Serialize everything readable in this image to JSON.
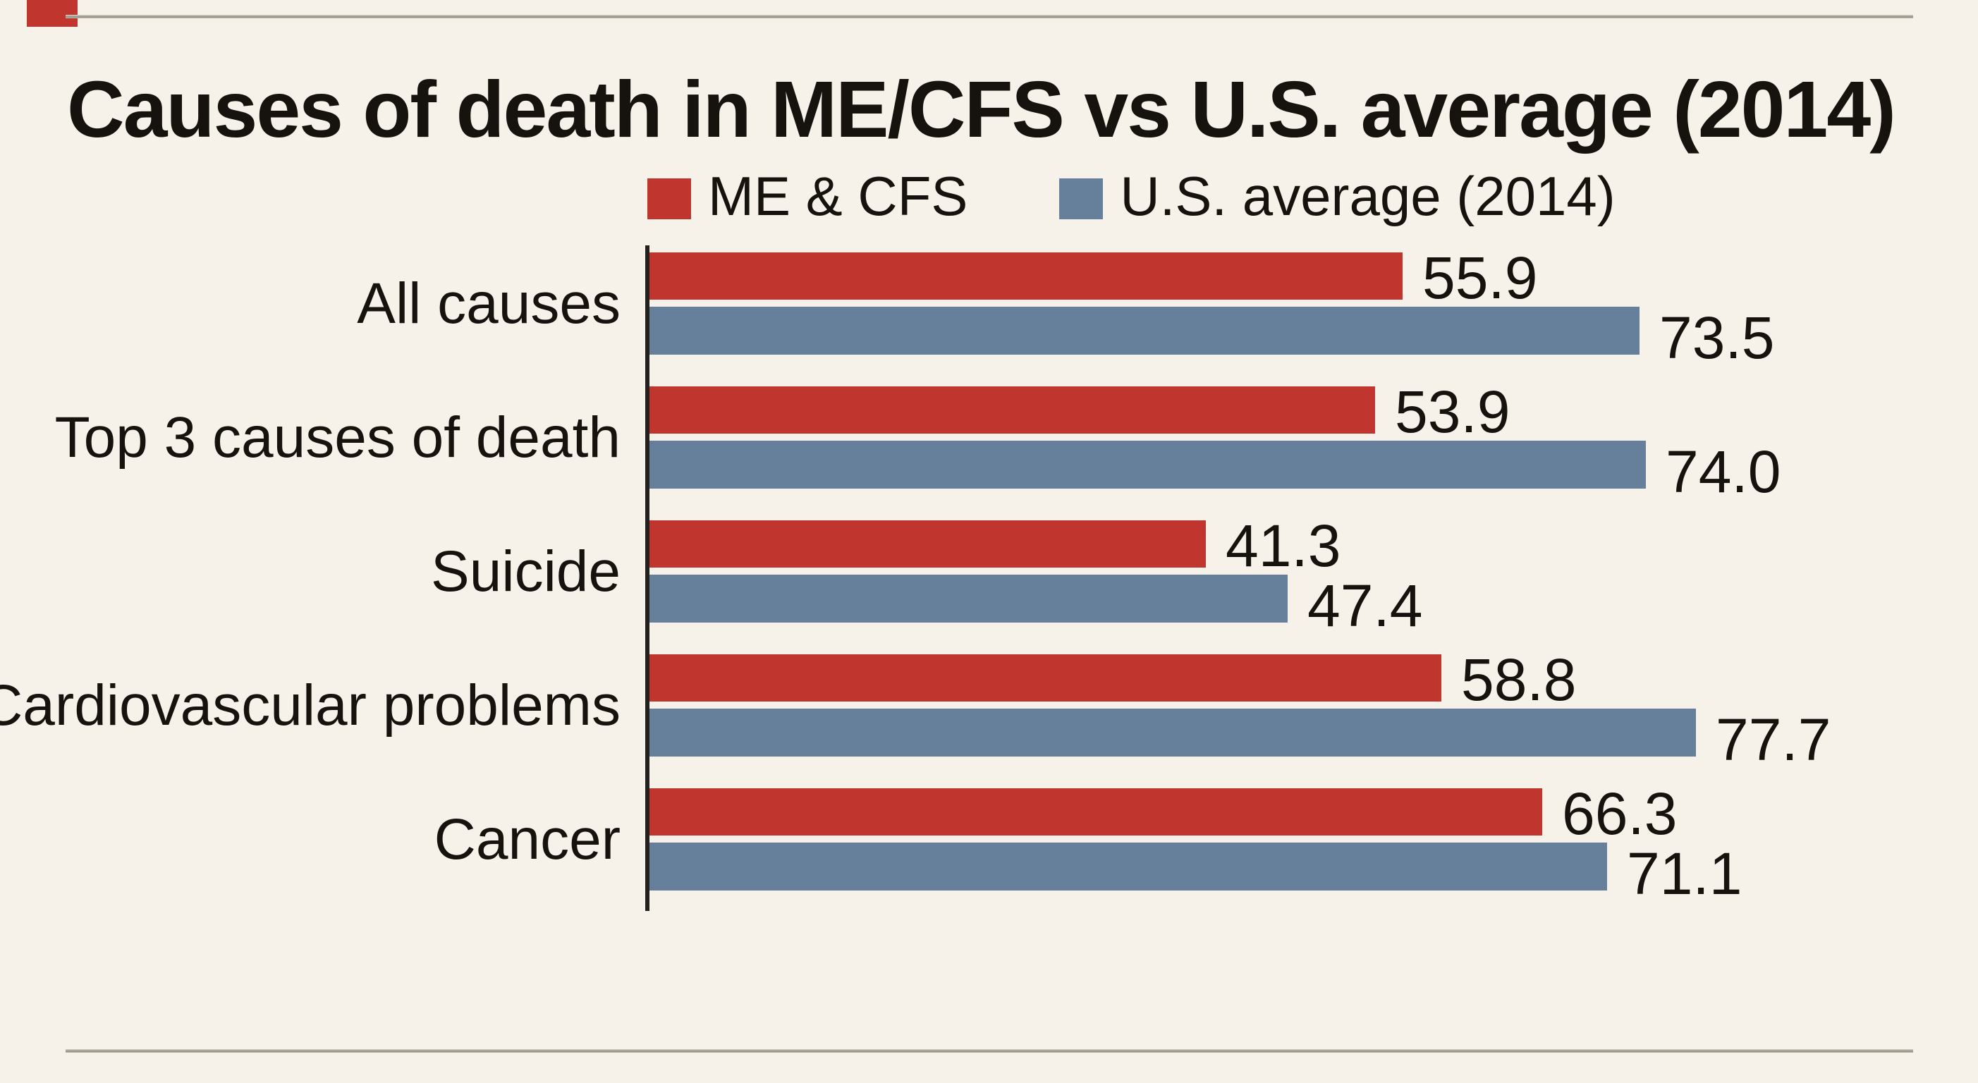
{
  "page": {
    "background_color": "#f7f2e9",
    "rule_color": "#8f8c81",
    "corner_mark_color": "#c1352f",
    "axis_color": "#23211e",
    "text_color": "#16130f"
  },
  "chart_data": {
    "type": "bar",
    "orientation": "horizontal",
    "title": "Causes of death in ME/CFS vs U.S. average (2014)",
    "categories": [
      "All causes",
      "Top 3 causes of death",
      "Suicide",
      "Cardiovascular problems",
      "Cancer"
    ],
    "series": [
      {
        "name": "ME & CFS",
        "color": "#c1352f",
        "values": [
          55.9,
          53.9,
          41.3,
          58.8,
          66.3
        ]
      },
      {
        "name": "U.S. average (2014)",
        "color": "#66809b",
        "values": [
          73.5,
          74.0,
          47.4,
          77.7,
          71.1
        ]
      }
    ],
    "value_label_format": "fixed1",
    "xlabel": "",
    "ylabel": "",
    "xlim": [
      0,
      80
    ],
    "grid": false,
    "legend_position": "top",
    "value_labels_shown": true,
    "axis_ticks_shown": false
  }
}
